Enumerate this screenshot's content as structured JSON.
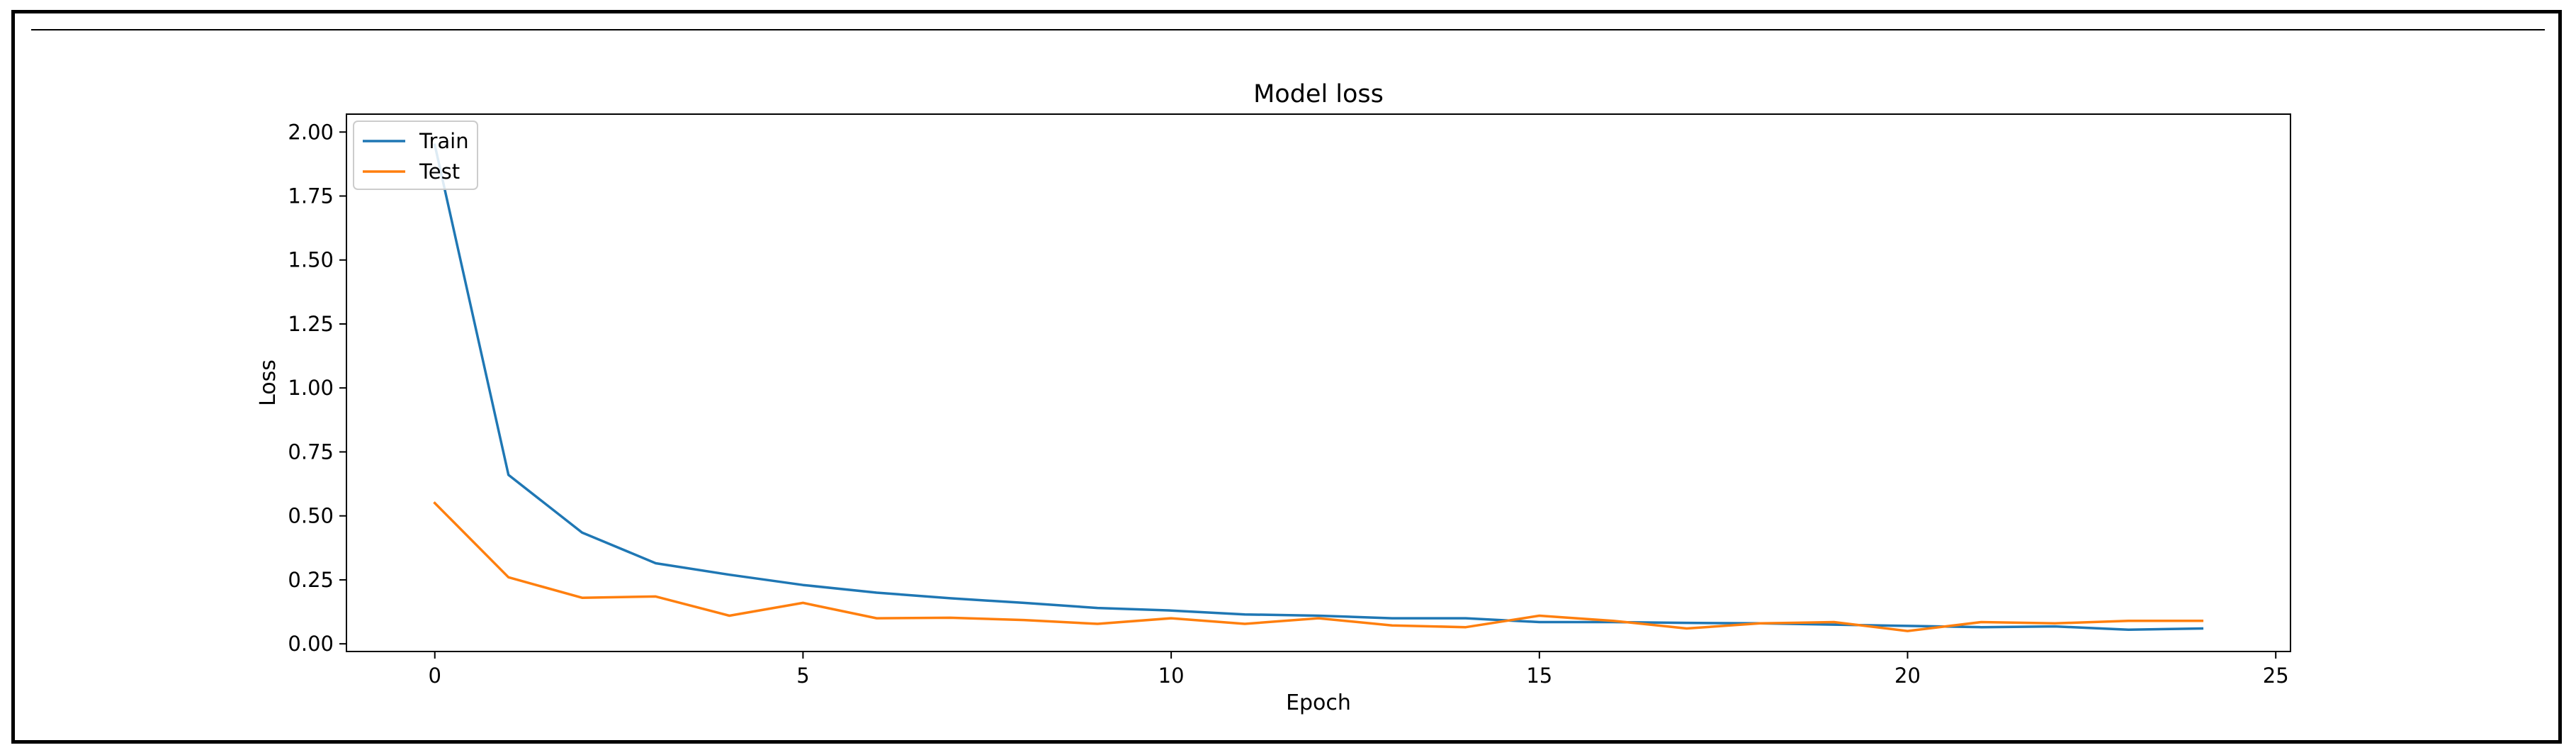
{
  "chart_data": {
    "type": "line",
    "title": "Model loss",
    "xlabel": "Epoch",
    "ylabel": "Loss",
    "xlim": [
      -1.2,
      25.2
    ],
    "ylim": [
      -0.03,
      2.07
    ],
    "xticks": [
      0,
      5,
      10,
      15,
      20,
      25
    ],
    "yticks": [
      0.0,
      0.25,
      0.5,
      0.75,
      1.0,
      1.25,
      1.5,
      1.75,
      2.0
    ],
    "xtick_labels": [
      "0",
      "5",
      "10",
      "15",
      "20",
      "25"
    ],
    "ytick_labels": [
      "0.00",
      "0.25",
      "0.50",
      "0.75",
      "1.00",
      "1.25",
      "1.50",
      "1.75",
      "2.00"
    ],
    "grid": false,
    "legend_position": "upper left",
    "x": [
      0,
      1,
      2,
      3,
      4,
      5,
      6,
      7,
      8,
      9,
      10,
      11,
      12,
      13,
      14,
      15,
      16,
      17,
      18,
      19,
      20,
      21,
      22,
      23,
      24
    ],
    "series": [
      {
        "name": "Train",
        "color": "#1f77b4",
        "values": [
          1.95,
          0.66,
          0.435,
          0.315,
          0.27,
          0.23,
          0.2,
          0.178,
          0.16,
          0.14,
          0.13,
          0.115,
          0.11,
          0.1,
          0.1,
          0.085,
          0.085,
          0.082,
          0.08,
          0.075,
          0.07,
          0.065,
          0.068,
          0.055,
          0.06
        ]
      },
      {
        "name": "Test",
        "color": "#ff7f0e",
        "values": [
          0.55,
          0.26,
          0.18,
          0.185,
          0.11,
          0.16,
          0.1,
          0.102,
          0.093,
          0.078,
          0.1,
          0.078,
          0.1,
          0.072,
          0.065,
          0.11,
          0.09,
          0.06,
          0.08,
          0.085,
          0.05,
          0.085,
          0.08,
          0.09,
          0.09
        ]
      }
    ]
  }
}
